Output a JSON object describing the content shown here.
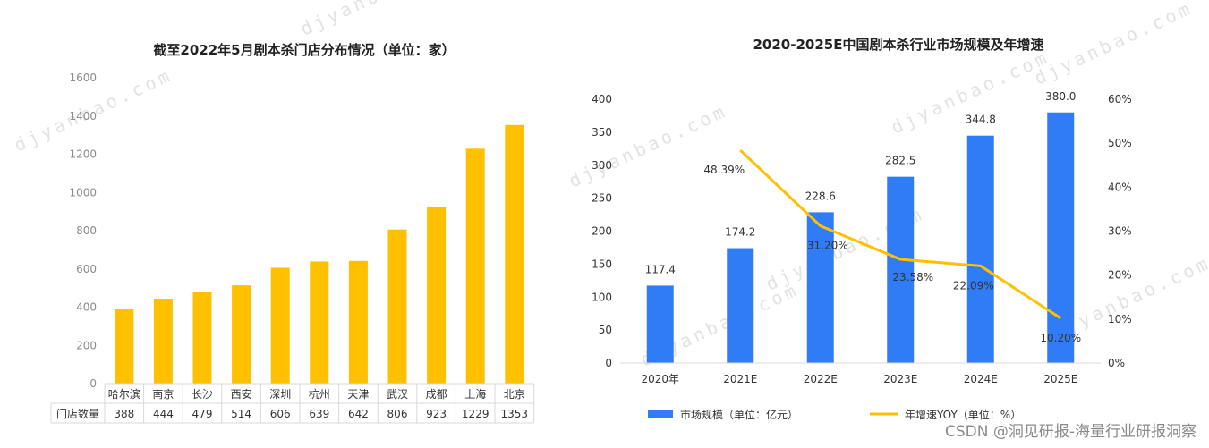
{
  "chart_data": [
    {
      "type": "bar",
      "title": "截至2022年5月剧本杀门店分布情况（单位：家）",
      "categories": [
        "哈尔滨",
        "南京",
        "长沙",
        "西安",
        "深圳",
        "杭州",
        "天津",
        "武汉",
        "成都",
        "上海",
        "北京"
      ],
      "values": [
        388,
        444,
        479,
        514,
        606,
        639,
        642,
        806,
        923,
        1229,
        1353
      ],
      "ylim": [
        0,
        1600
      ],
      "yticks": [
        0,
        200,
        400,
        600,
        800,
        1000,
        1200,
        1400,
        1600
      ],
      "table_row_label": "门店数量",
      "bar_color": "#FFC000",
      "grid": false
    },
    {
      "type": "bar+line",
      "title": "2020-2025E中国剧本杀行业市场规模及年增速",
      "categories": [
        "2020年",
        "2021E",
        "2022E",
        "2023E",
        "2024E",
        "2025E"
      ],
      "series": [
        {
          "name": "市场规模（单位：亿元）",
          "type": "bar",
          "axis": "left",
          "values": [
            117.4,
            174.2,
            228.6,
            282.5,
            344.8,
            380.0
          ],
          "labels": [
            "117.4",
            "174.2",
            "228.6",
            "282.5",
            "344.8",
            "380.0"
          ],
          "color": "#2F7CF6"
        },
        {
          "name": "年增速YOY（单位：%）",
          "type": "line",
          "axis": "right",
          "values": [
            null,
            48.39,
            31.2,
            23.58,
            22.09,
            10.2
          ],
          "labels": [
            "",
            "48.39%",
            "31.20%",
            "23.58%",
            "22.09%",
            "10.20%"
          ],
          "color": "#FFC000"
        }
      ],
      "ylim_left": [
        0,
        400
      ],
      "yticks_left": [
        0,
        50,
        100,
        150,
        200,
        250,
        300,
        350,
        400
      ],
      "ylim_right": [
        0,
        60
      ],
      "yticks_right": [
        "0%",
        "10%",
        "20%",
        "30%",
        "40%",
        "50%",
        "60%"
      ],
      "legend_position": "bottom",
      "grid": false
    }
  ],
  "watermark": "djyanbao.com",
  "credit": "CSDN @洞见研报-海量行业研报洞察"
}
